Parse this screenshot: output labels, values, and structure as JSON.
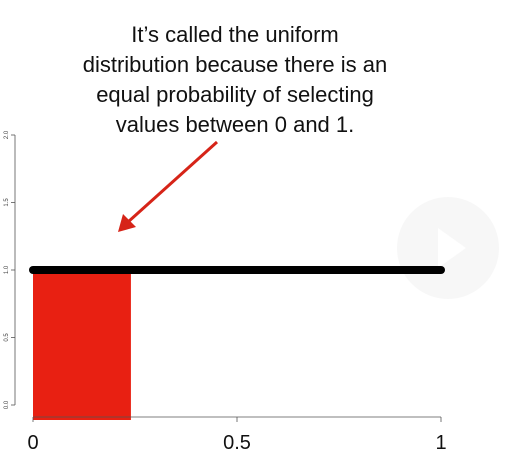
{
  "chart_data": {
    "type": "area",
    "title": "",
    "xlabel": "",
    "ylabel": "",
    "x_ticks": [
      "0",
      "0.5",
      "1"
    ],
    "y_ticks": [
      "0.0",
      "0.5",
      "1.0",
      "1.5",
      "2.0"
    ],
    "xlim": [
      0,
      1
    ],
    "ylim": [
      0,
      2
    ],
    "grid": false,
    "series": [
      {
        "x": [
          0,
          1
        ],
        "values": [
          1,
          1
        ]
      }
    ],
    "shaded_region": {
      "x": [
        0,
        0.24
      ],
      "y": 1
    }
  },
  "annotation": {
    "lines": [
      "It’s called the uniform",
      "distribution because there is an",
      "equal probability of selecting",
      "values between 0 and 1."
    ]
  },
  "colors": {
    "line": "#000000",
    "shade": "#e82012",
    "arrow": "#d62418",
    "play_overlay": "#f2f2f2"
  },
  "icons": {
    "overlay": "play-icon"
  }
}
